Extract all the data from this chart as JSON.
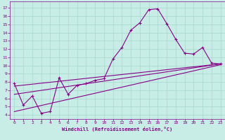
{
  "xlabel": "Windchill (Refroidissement éolien,°C)",
  "bg_color": "#c8ece6",
  "grid_color": "#a8d8cc",
  "line_color": "#880088",
  "axis_color": "#880088",
  "x_ticks": [
    0,
    1,
    2,
    3,
    4,
    5,
    6,
    7,
    8,
    9,
    10,
    11,
    12,
    13,
    14,
    15,
    16,
    17,
    18,
    19,
    20,
    21,
    22,
    23
  ],
  "y_ticks": [
    4,
    5,
    6,
    7,
    8,
    9,
    10,
    11,
    12,
    13,
    14,
    15,
    16,
    17
  ],
  "xlim": [
    -0.5,
    23.5
  ],
  "ylim": [
    3.5,
    17.8
  ],
  "main_line_x": [
    0,
    1,
    2,
    3,
    4,
    5,
    6,
    7,
    8,
    9,
    10,
    11,
    12,
    13,
    14,
    15,
    16,
    17,
    18,
    19,
    20,
    21,
    22,
    23
  ],
  "main_line_y": [
    7.8,
    5.2,
    6.3,
    4.2,
    4.4,
    8.5,
    6.5,
    7.6,
    7.8,
    8.2,
    8.4,
    10.8,
    12.2,
    14.3,
    15.2,
    16.8,
    16.9,
    15.1,
    13.2,
    11.5,
    11.4,
    12.2,
    10.3,
    10.2
  ],
  "trend1_x": [
    0,
    23
  ],
  "trend1_y": [
    7.5,
    10.2
  ],
  "trend2_x": [
    0,
    23
  ],
  "trend2_y": [
    6.5,
    10.2
  ],
  "trend3_x": [
    0,
    23
  ],
  "trend3_y": [
    4.4,
    10.1
  ]
}
